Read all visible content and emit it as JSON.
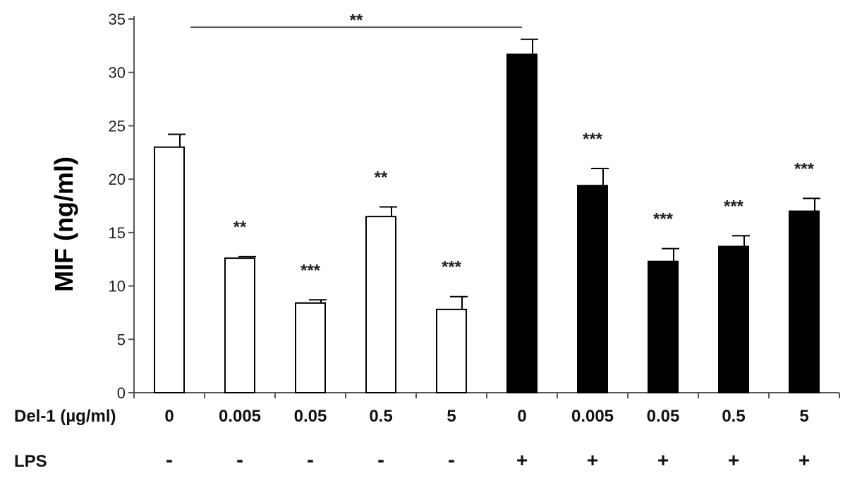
{
  "chart_data": {
    "type": "bar",
    "ylabel": "MIF (ng/ml)",
    "ylim": [
      0,
      35
    ],
    "yticks": [
      0,
      5,
      10,
      15,
      20,
      25,
      30,
      35
    ],
    "row_labels": {
      "del1": "Del-1 (µg/ml)",
      "lps": "LPS"
    },
    "categories": [
      "0",
      "0.005",
      "0.05",
      "0.5",
      "5",
      "0",
      "0.005",
      "0.05",
      "0.5",
      "5"
    ],
    "lps": [
      "-",
      "-",
      "-",
      "-",
      "-",
      "+",
      "+",
      "+",
      "+",
      "+"
    ],
    "values": [
      23.0,
      12.6,
      8.4,
      16.5,
      7.8,
      31.7,
      19.4,
      12.3,
      13.7,
      17.0
    ],
    "errors": [
      1.2,
      0.15,
      0.3,
      0.9,
      1.2,
      1.4,
      1.6,
      1.2,
      1.0,
      1.2
    ],
    "fill": [
      "#ffffff",
      "#ffffff",
      "#ffffff",
      "#ffffff",
      "#ffffff",
      "#000000",
      "#000000",
      "#000000",
      "#000000",
      "#000000"
    ],
    "significance": [
      "",
      "**",
      "***",
      "**",
      "***",
      "",
      "***",
      "***",
      "***",
      "***"
    ],
    "bracket": {
      "from": 0,
      "to": 5,
      "label": "**",
      "y": 34.5
    }
  }
}
